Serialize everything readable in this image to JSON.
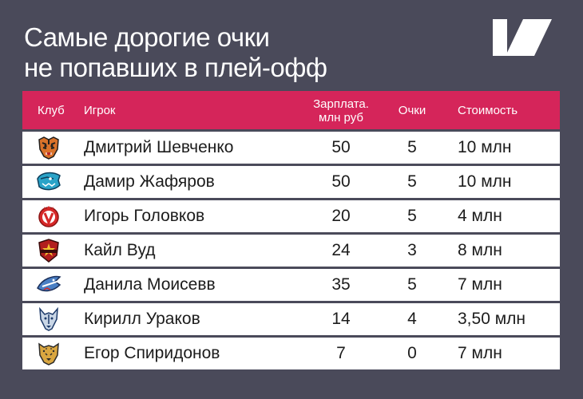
{
  "title": {
    "line1": "Самые дорогие очки",
    "line2": "не попавших в плей-офф"
  },
  "brand_logo": "brand-logo-slash",
  "colors": {
    "background": "#4a4a5a",
    "header": "#d5255a",
    "row": "#ffffff"
  },
  "table": {
    "headers": {
      "club": "Клуб",
      "player": "Игрок",
      "salary": "Зарплата. млн руб",
      "points": "Очки",
      "cost": "Стоимость"
    },
    "rows": [
      {
        "club_logo": "tiger-logo",
        "player": "Дмитрий Шевченко",
        "salary": "50",
        "points": "5",
        "cost": "10 млн"
      },
      {
        "club_logo": "snow-leopard-logo",
        "player": "Дамир Жафяров",
        "salary": "50",
        "points": "5",
        "cost": "10 млн"
      },
      {
        "club_logo": "vityaz-logo",
        "player": "Игорь Головков",
        "salary": "20",
        "points": "5",
        "cost": "4 млн"
      },
      {
        "club_logo": "red-star-logo",
        "player": "Кайл Вуд",
        "salary": "24",
        "points": "3",
        "cost": "8 млн"
      },
      {
        "club_logo": "shark-logo",
        "player": "Данила Моисевв",
        "salary": "35",
        "points": "5",
        "cost": "7 млн"
      },
      {
        "club_logo": "wolf-logo",
        "player": "Кирилл Ураков",
        "salary": "14",
        "points": "4",
        "cost": "3,50 млн"
      },
      {
        "club_logo": "leopard-logo",
        "player": "Егор Спиридонов",
        "salary": "7",
        "points": "0",
        "cost": "7 млн"
      }
    ]
  }
}
